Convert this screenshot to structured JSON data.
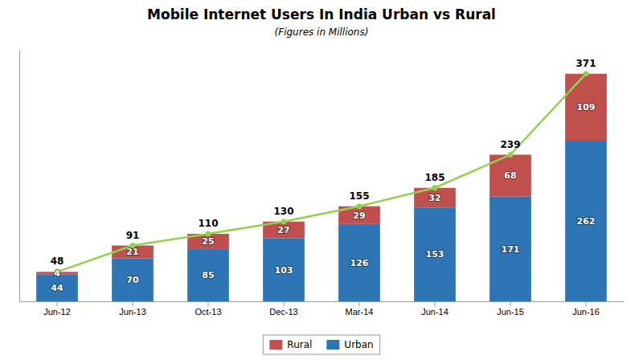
{
  "chart_data": {
    "type": "bar",
    "title": "Mobile Internet Users In India Urban vs Rural",
    "subtitle": "(Figures in Millions)",
    "categories": [
      "Jun-12",
      "Jun-13",
      "Oct-13",
      "Dec-13",
      "Mar-14",
      "Jun-14",
      "Jun-15",
      "Jun-16"
    ],
    "stacked": true,
    "data_labels": true,
    "series": [
      {
        "name": "Urban",
        "type": "bar",
        "color": "#2E75B6",
        "values": [
          44,
          70,
          85,
          103,
          126,
          153,
          171,
          262
        ]
      },
      {
        "name": "Rural",
        "type": "bar",
        "color": "#C0504D",
        "values": [
          4,
          21,
          25,
          27,
          29,
          32,
          68,
          109
        ]
      },
      {
        "type": "line",
        "color": "#92D050",
        "marker": "circle",
        "values": [
          48,
          91,
          110,
          130,
          155,
          185,
          239,
          371
        ]
      }
    ],
    "ylim": [
      0,
      410
    ],
    "yticks": [],
    "tick_labels": "x",
    "grid": false,
    "legend": "bottom"
  }
}
